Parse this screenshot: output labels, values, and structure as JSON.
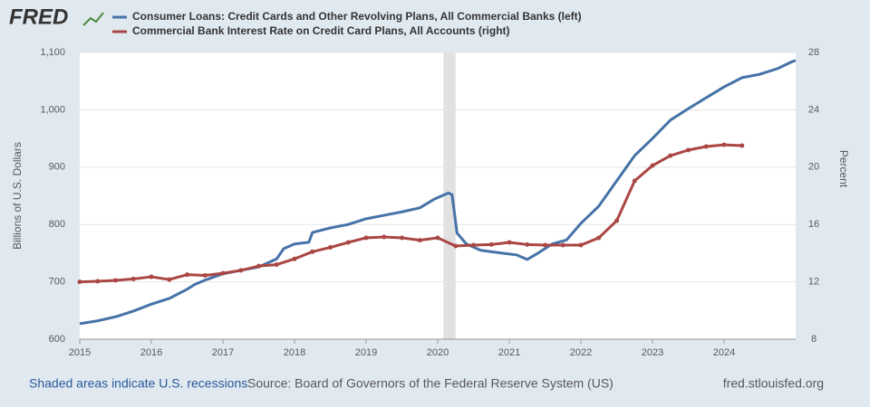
{
  "logo": "FRED",
  "chart_data": {
    "type": "line",
    "xlim": [
      2015,
      2025
    ],
    "xticks": [
      2015,
      2016,
      2017,
      2018,
      2019,
      2020,
      2021,
      2022,
      2023,
      2024
    ],
    "ylim": [
      600,
      1100
    ],
    "yticks": [
      600,
      700,
      800,
      900,
      {
        "value": 1000,
        "label": "1,000"
      },
      {
        "value": 1100,
        "label": "1,100"
      }
    ],
    "y2lim": [
      8,
      28
    ],
    "y2ticks": [
      8,
      12,
      16,
      20,
      24,
      28
    ],
    "ylabel": "Billions of U.S. Dollars",
    "y2label": "Percent",
    "grid": true,
    "recessions": [
      [
        2020.08,
        2020.25
      ]
    ],
    "series": [
      {
        "name": "Consumer Loans: Credit Cards and Other Revolving Plans, All Commercial Banks (left)",
        "color": "#4572a7",
        "markers": false,
        "x": [
          2015.0,
          2015.25,
          2015.5,
          2015.75,
          2016.0,
          2016.25,
          2016.5,
          2016.6,
          2016.75,
          2017.0,
          2017.25,
          2017.5,
          2017.75,
          2017.85,
          2018.0,
          2018.2,
          2018.25,
          2018.5,
          2018.75,
          2019.0,
          2019.25,
          2019.5,
          2019.75,
          2019.95,
          2020.15,
          2020.2,
          2020.27,
          2020.4,
          2020.6,
          2020.9,
          2021.1,
          2021.25,
          2021.4,
          2021.6,
          2021.8,
          2022.0,
          2022.25,
          2022.5,
          2022.75,
          2023.0,
          2023.25,
          2023.5,
          2023.75,
          2024.0,
          2024.25,
          2024.5,
          2024.75,
          2024.95,
          2025.0
        ],
        "values": [
          627,
          632,
          639,
          649,
          661,
          671,
          687,
          695,
          703,
          714,
          720,
          726,
          740,
          758,
          766,
          769,
          786,
          794,
          800,
          810,
          816,
          822,
          829,
          844,
          855,
          852,
          785,
          766,
          755,
          750,
          747,
          739,
          750,
          766,
          773,
          802,
          832,
          876,
          920,
          950,
          982,
          1002,
          1021,
          1040,
          1056,
          1062,
          1072,
          1084,
          1086
        ]
      },
      {
        "name": "Commercial Bank Interest Rate on Credit Card Plans, All Accounts (right)",
        "color": "#aa4643",
        "axis": "y2",
        "markers": true,
        "x": [
          2015.0,
          2015.25,
          2015.5,
          2015.75,
          2016.0,
          2016.25,
          2016.5,
          2016.75,
          2017.0,
          2017.25,
          2017.5,
          2017.75,
          2018.0,
          2018.25,
          2018.5,
          2018.75,
          2019.0,
          2019.25,
          2019.5,
          2019.75,
          2020.0,
          2020.25,
          2020.5,
          2020.75,
          2021.0,
          2021.25,
          2021.5,
          2021.75,
          2022.0,
          2022.25,
          2022.5,
          2022.75,
          2023.0,
          2023.25,
          2023.5,
          2023.75,
          2024.0,
          2024.25
        ],
        "values": [
          12.0,
          12.04,
          12.1,
          12.2,
          12.35,
          12.16,
          12.5,
          12.45,
          12.6,
          12.8,
          13.1,
          13.2,
          13.6,
          14.1,
          14.4,
          14.75,
          15.07,
          15.13,
          15.07,
          14.9,
          15.07,
          14.5,
          14.56,
          14.6,
          14.75,
          14.6,
          14.56,
          14.56,
          14.56,
          15.07,
          16.26,
          19.04,
          20.11,
          20.8,
          21.19,
          21.44,
          21.56,
          21.5
        ]
      }
    ]
  },
  "footer": {
    "recession_note": "Shaded areas indicate U.S. recessions",
    "source": "Source: Board of Governors of the Federal Reserve System (US)",
    "site": "fred.stlouisfed.org"
  }
}
